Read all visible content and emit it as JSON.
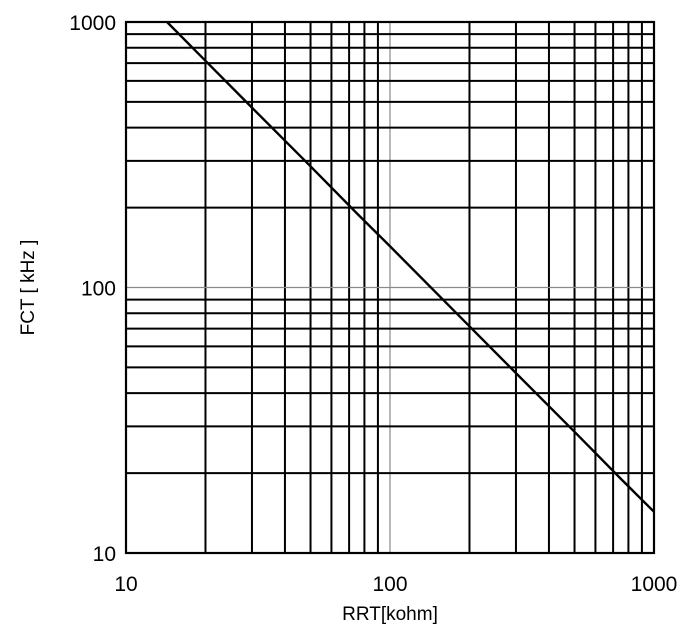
{
  "chart_data": {
    "type": "line",
    "title": "",
    "xlabel": "RRT[kohm]",
    "ylabel": "FCT [ kHz ]",
    "xscale": "log",
    "yscale": "log",
    "xlim": [
      10,
      1000
    ],
    "ylim": [
      10,
      1000
    ],
    "x_tick_labels": [
      "10",
      "100",
      "1000"
    ],
    "y_tick_labels": [
      "10",
      "100",
      "1000"
    ],
    "x_ticks": [
      10,
      100,
      1000
    ],
    "y_ticks": [
      10,
      100,
      1000
    ],
    "grid": true,
    "legend": "none",
    "series": [
      {
        "color": "#000000",
        "x": [
          14.3,
          20,
          30,
          50,
          75,
          100,
          200,
          300,
          500,
          750,
          1000
        ],
        "y": [
          1000,
          714,
          476,
          286,
          190,
          143,
          71.4,
          47.6,
          28.6,
          19,
          14.3
        ]
      }
    ]
  }
}
